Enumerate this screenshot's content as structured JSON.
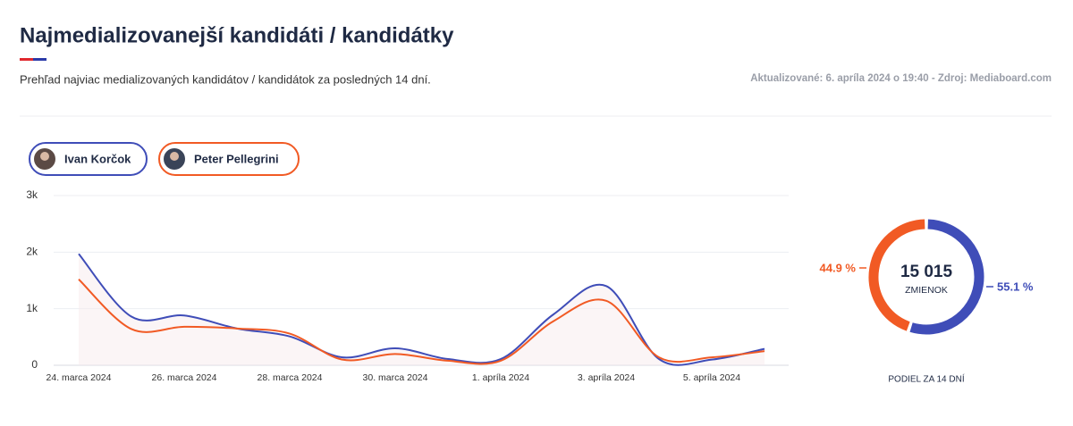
{
  "header": {
    "title": "Najmedializovanejší kandidáti / kandidátky",
    "subtitle": "Prehľad najviac medializovaných kandidátov / kandidátok za posledných 14 dní.",
    "updated": "Aktualizované: 6. apríla 2024 o 19:40 - Zdroj: Mediaboard.com"
  },
  "chart_data": [
    {
      "type": "line",
      "categories": [
        "24. marca 2024",
        null,
        "26. marca 2024",
        null,
        "28. marca 2024",
        null,
        "30. marca 2024",
        null,
        "1. apríla 2024",
        null,
        "3. apríla 2024",
        null,
        "5. apríla 2024",
        null
      ],
      "series": [
        {
          "name": "Ivan Korčok",
          "color": "#3f4db8",
          "values": [
            1970,
            860,
            880,
            650,
            510,
            140,
            300,
            110,
            110,
            900,
            1400,
            110,
            100,
            290
          ]
        },
        {
          "name": "Peter Pellegrini",
          "color": "#f15a24",
          "values": [
            1520,
            640,
            680,
            650,
            560,
            100,
            200,
            80,
            80,
            780,
            1140,
            140,
            140,
            250
          ]
        }
      ],
      "ylim": [
        0,
        3000
      ],
      "yticks": [
        0,
        {
          "value": 1000,
          "label": "1k"
        },
        {
          "value": 2000,
          "label": "2k"
        },
        {
          "value": 3000,
          "label": "3k"
        }
      ],
      "grid": true
    },
    {
      "type": "donut",
      "values": [
        44.9,
        55.1
      ],
      "value_labels": [
        "44.9 %",
        "55.1 %"
      ],
      "colors": [
        "#f15a24",
        "#3f4db8"
      ],
      "total": {
        "value": 15015,
        "label": "15 015"
      },
      "total_caption": "ZMIENOK",
      "caption": "PODIEL ZA 14 DNÍ"
    }
  ]
}
